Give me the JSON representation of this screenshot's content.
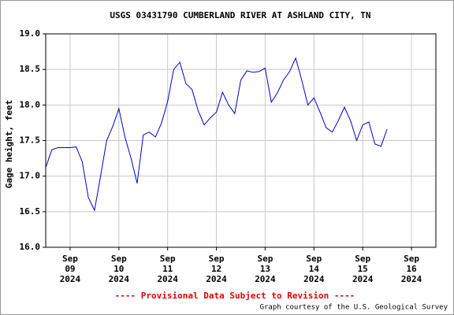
{
  "chart_data": {
    "type": "line",
    "title": "USGS 03431790 CUMBERLAND RIVER AT ASHLAND CITY, TN",
    "y_label": "Gage height, feet",
    "annotation": "---- Provisional Data Subject to Revision ----",
    "credit": "Graph courtesy of the U.S. Geological Survey",
    "x": [
      "2024-09-08T12:00",
      "2024-09-08T15:00",
      "2024-09-08T18:00",
      "2024-09-08T21:00",
      "2024-09-09T00:00",
      "2024-09-09T03:00",
      "2024-09-09T06:00",
      "2024-09-09T09:00",
      "2024-09-09T12:00",
      "2024-09-09T15:00",
      "2024-09-09T18:00",
      "2024-09-09T21:00",
      "2024-09-10T00:00",
      "2024-09-10T03:00",
      "2024-09-10T06:00",
      "2024-09-10T09:00",
      "2024-09-10T12:00",
      "2024-09-10T15:00",
      "2024-09-10T18:00",
      "2024-09-10T21:00",
      "2024-09-11T00:00",
      "2024-09-11T03:00",
      "2024-09-11T06:00",
      "2024-09-11T09:00",
      "2024-09-11T12:00",
      "2024-09-11T15:00",
      "2024-09-11T18:00",
      "2024-09-11T21:00",
      "2024-09-12T00:00",
      "2024-09-12T03:00",
      "2024-09-12T06:00",
      "2024-09-12T09:00",
      "2024-09-12T12:00",
      "2024-09-12T15:00",
      "2024-09-12T18:00",
      "2024-09-12T21:00",
      "2024-09-13T00:00",
      "2024-09-13T03:00",
      "2024-09-13T06:00",
      "2024-09-13T09:00",
      "2024-09-13T12:00",
      "2024-09-13T15:00",
      "2024-09-13T18:00",
      "2024-09-13T21:00",
      "2024-09-14T00:00",
      "2024-09-14T03:00",
      "2024-09-14T06:00",
      "2024-09-14T09:00",
      "2024-09-14T12:00",
      "2024-09-14T15:00",
      "2024-09-14T18:00",
      "2024-09-14T21:00",
      "2024-09-15T00:00",
      "2024-09-15T03:00",
      "2024-09-15T06:00",
      "2024-09-15T09:00",
      "2024-09-15T12:00"
    ],
    "series": [
      {
        "color": "#0000cc",
        "values": [
          17.12,
          17.37,
          17.4,
          17.4,
          17.4,
          17.41,
          17.2,
          16.7,
          16.52,
          17.0,
          17.5,
          17.7,
          17.95,
          17.55,
          17.25,
          16.9,
          17.58,
          17.62,
          17.55,
          17.75,
          18.05,
          18.5,
          18.6,
          18.3,
          18.22,
          17.92,
          17.72,
          17.82,
          17.9,
          18.18,
          18.0,
          17.88,
          18.35,
          18.48,
          18.46,
          18.47,
          18.52,
          18.04,
          18.17,
          18.35,
          18.47,
          18.66,
          18.35,
          18.0,
          18.1,
          17.9,
          17.68,
          17.62,
          17.78,
          17.97,
          17.78,
          17.5,
          17.72,
          17.76,
          17.45,
          17.42,
          17.66
        ]
      }
    ],
    "xlim": [
      "2024-09-08T12:00",
      "2024-09-16T12:00"
    ],
    "xticks": [
      {
        "value": "2024-09-09T00:00",
        "label": "Sep 09 2024"
      },
      {
        "value": "2024-09-10T00:00",
        "label": "Sep 10 2024"
      },
      {
        "value": "2024-09-11T00:00",
        "label": "Sep 11 2024"
      },
      {
        "value": "2024-09-12T00:00",
        "label": "Sep 12 2024"
      },
      {
        "value": "2024-09-13T00:00",
        "label": "Sep 13 2024"
      },
      {
        "value": "2024-09-14T00:00",
        "label": "Sep 14 2024"
      },
      {
        "value": "2024-09-15T00:00",
        "label": "Sep 15 2024"
      },
      {
        "value": "2024-09-16T00:00",
        "label": "Sep 16 2024"
      }
    ],
    "ylim": [
      16,
      19
    ],
    "yticks": [
      {
        "value": 16,
        "label": "16.0"
      },
      16.5,
      {
        "value": 17,
        "label": "17.0"
      },
      17.5,
      {
        "value": 18,
        "label": "18.0"
      },
      18.5,
      {
        "value": 19,
        "label": "19.0"
      }
    ],
    "grid": true
  }
}
